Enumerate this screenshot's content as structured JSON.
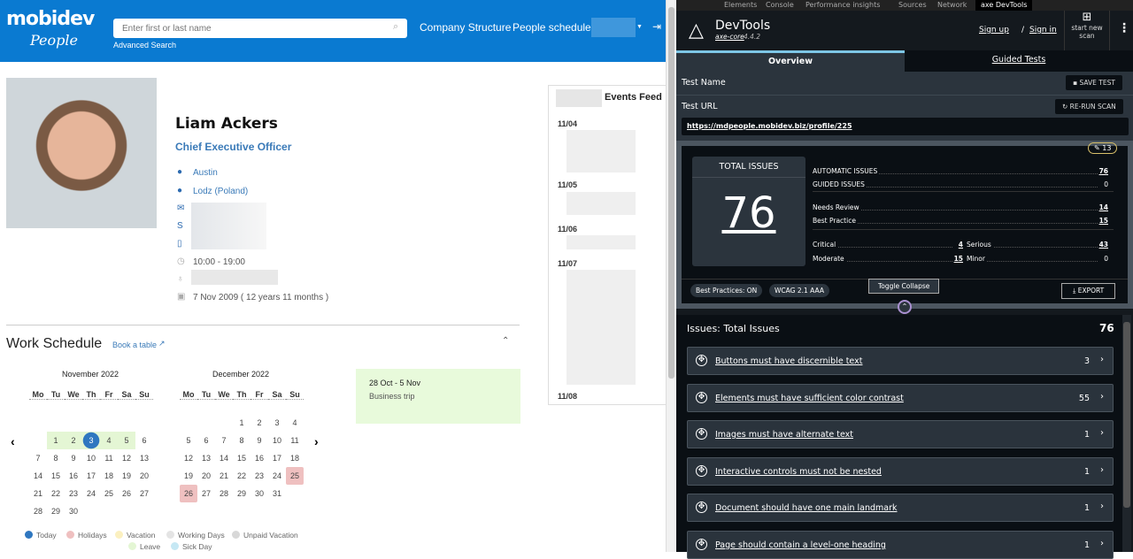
{
  "header": {
    "logo_top": "mobidev",
    "logo_bottom": "People",
    "search_placeholder": "Enter first or last name",
    "advanced_search": "Advanced Search",
    "nav": [
      "Company Structure",
      "People schedule"
    ]
  },
  "profile": {
    "name": "Liam Ackers",
    "title": "Chief Executive Officer",
    "location": "Austin",
    "office": "Lodz (Poland)",
    "hours": "10:00 - 19:00",
    "hire_date": "7 Nov 2009 ( 12 years 11 months )"
  },
  "events": {
    "title": "Events Feed",
    "dates": [
      "11/04",
      "11/05",
      "11/06",
      "11/07",
      "11/08"
    ]
  },
  "schedule": {
    "title": "Work Schedule",
    "book": "Book a table",
    "weekdays": [
      "Mo",
      "Tu",
      "We",
      "Th",
      "Fr",
      "Sa",
      "Su"
    ],
    "months": [
      {
        "title": "November 2022",
        "weeks": [
          [
            null,
            null,
            null,
            null,
            null,
            null,
            null
          ],
          [
            null,
            1,
            2,
            3,
            4,
            5,
            6
          ],
          [
            7,
            8,
            9,
            10,
            11,
            12,
            13
          ],
          [
            14,
            15,
            16,
            17,
            18,
            19,
            20
          ],
          [
            21,
            22,
            23,
            24,
            25,
            26,
            27
          ],
          [
            28,
            29,
            30,
            null,
            null,
            null,
            null
          ]
        ],
        "today": 3,
        "leave": [
          1,
          2,
          3,
          4,
          5
        ],
        "holidays": []
      },
      {
        "title": "December 2022",
        "weeks": [
          [
            null,
            null,
            null,
            1,
            2,
            3,
            4
          ],
          [
            5,
            6,
            7,
            8,
            9,
            10,
            11
          ],
          [
            12,
            13,
            14,
            15,
            16,
            17,
            18
          ],
          [
            19,
            20,
            21,
            22,
            23,
            24,
            25
          ],
          [
            26,
            27,
            28,
            29,
            30,
            31,
            null
          ]
        ],
        "today": null,
        "leave": [],
        "holidays": [
          25,
          26
        ]
      }
    ],
    "event": {
      "range": "28 Oct - 5 Nov",
      "label": "Business trip"
    },
    "legend": [
      {
        "label": "Today",
        "color": "#2f77c0"
      },
      {
        "label": "Holidays",
        "color": "#efc0c0"
      },
      {
        "label": "Vacation",
        "color": "#fbf0c0"
      },
      {
        "label": "Working Days",
        "color": "#e4e4e4"
      },
      {
        "label": "Unpaid Vacation",
        "color": "#d8d8d8"
      },
      {
        "label": "Leave",
        "color": "#e4f6d4"
      },
      {
        "label": "Sick Day",
        "color": "#c6e8f4"
      }
    ]
  },
  "devtools": {
    "tabs": [
      "Elements",
      "Console",
      "Performance insights",
      "Sources",
      "Network",
      "axe DevTools"
    ],
    "brand": "DevTools",
    "core": "axe-core",
    "version": "4.4.2",
    "sign_up": "Sign up",
    "sign_in": "Sign in",
    "start_scan": "start new scan",
    "subtabs": [
      "Overview",
      "Guided Tests"
    ],
    "test_name": "Test Name",
    "save": "SAVE TEST",
    "test_url": "Test URL",
    "rerun": "RE-RUN SCAN",
    "url": "https://mdpeople.mobidev.biz/profile/225",
    "badge": "13",
    "total_label": "TOTAL ISSUES",
    "total": "76",
    "stats": {
      "automatic_label": "AUTOMATIC ISSUES",
      "automatic": "76",
      "guided_label": "GUIDED ISSUES",
      "guided": "0",
      "review_label": "Needs Review",
      "review": "14",
      "bp_label": "Best Practice",
      "bp": "15",
      "critical_label": "Critical",
      "critical": "4",
      "serious_label": "Serious",
      "serious": "43",
      "moderate_label": "Moderate",
      "moderate": "15",
      "minor_label": "Minor",
      "minor": "0"
    },
    "best_practices": "Best Practices: ON",
    "wcag": "WCAG 2.1 AAA",
    "toggle": "Toggle Collapse",
    "export": "EXPORT",
    "issues_title": "Issues: Total Issues",
    "issues_count": "76",
    "issues": [
      {
        "title": "Buttons must have discernible text",
        "count": "3"
      },
      {
        "title": "Elements must have sufficient color contrast",
        "count": "55"
      },
      {
        "title": "Images must have alternate text",
        "count": "1"
      },
      {
        "title": "Interactive controls must not be nested",
        "count": "1"
      },
      {
        "title": "Document should have one main landmark",
        "count": "1"
      },
      {
        "title": "Page should contain a level-one heading",
        "count": "1"
      }
    ]
  }
}
